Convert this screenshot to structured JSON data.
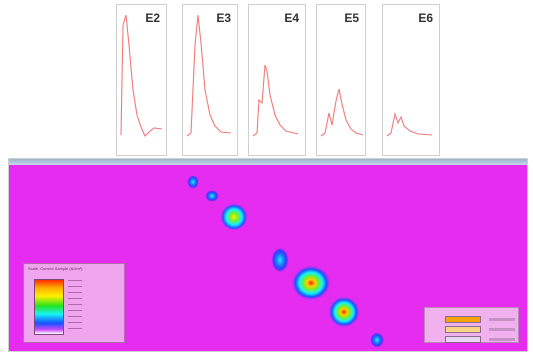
{
  "thumbs": [
    {
      "label": "E2"
    },
    {
      "label": "E3"
    },
    {
      "label": "E4"
    },
    {
      "label": "E5"
    },
    {
      "label": "E6"
    }
  ],
  "legend_left": {
    "title": "Scale, Current Sample (A/cm²)"
  },
  "colors": {
    "heat_bg": "#e52cf0",
    "trace": "#f07a7a"
  }
}
